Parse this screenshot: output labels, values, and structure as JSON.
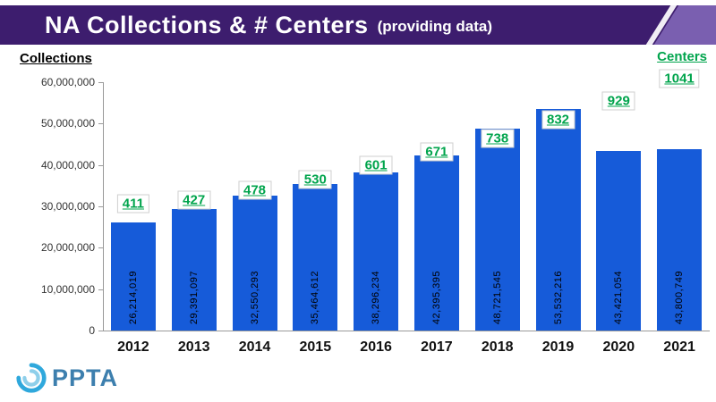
{
  "header": {
    "title": "NA Collections & # Centers",
    "subtitle": "(providing data)"
  },
  "axis_titles": {
    "left": "Collections",
    "right": "Centers"
  },
  "logo": {
    "text": "PPTA"
  },
  "colors": {
    "bar": "#165BD9",
    "centers_green": "#00A44C",
    "header_purple": "#3D1D6E",
    "logo_blue": "#3D7FAE"
  },
  "chart_data": {
    "type": "bar",
    "title": "NA Collections & # Centers (providing data)",
    "categories": [
      "2012",
      "2013",
      "2014",
      "2015",
      "2016",
      "2017",
      "2018",
      "2019",
      "2020",
      "2021"
    ],
    "series": [
      {
        "name": "Collections",
        "axis": "left",
        "values": [
          26214019,
          29391097,
          32550293,
          35464612,
          38296234,
          42395395,
          48721545,
          53532216,
          43421054,
          43800749
        ]
      },
      {
        "name": "Centers (providing data)",
        "axis": "right",
        "values": [
          411,
          427,
          478,
          530,
          601,
          671,
          738,
          832,
          929,
          1041
        ]
      }
    ],
    "ylabel": "Collections",
    "y2label": "Centers",
    "ylim": [
      0,
      60000000
    ],
    "ytick_step": 10000000,
    "grid": false,
    "legend": "none"
  }
}
